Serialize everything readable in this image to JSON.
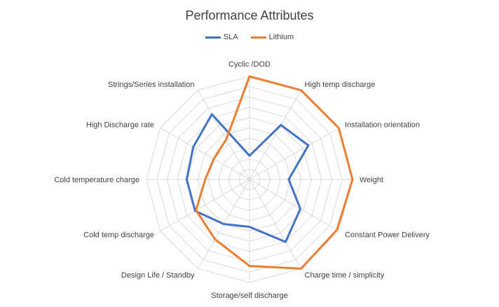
{
  "chart_data": {
    "type": "radar",
    "title": "Performance Attributes",
    "categories": [
      "Cyclic /DOD",
      "High temp discharge",
      "Installation orientation",
      "Weight",
      "Constant Power Delivery",
      "Charge time / simplicity",
      "Storage/self discharge",
      "Design Life / Standby",
      "Cold temp discharge",
      "Cold temperature charge",
      "High Discharge rate",
      "Strings/Series installation"
    ],
    "range": [
      0,
      10
    ],
    "rings": 10,
    "grid": true,
    "legend_position": "top",
    "series": [
      {
        "name": "SLA",
        "color": "#4472C4",
        "values": [
          2.3,
          6.1,
          6.6,
          3.8,
          5.7,
          7.0,
          4.6,
          5.0,
          6.1,
          6.1,
          6.3,
          7.3
        ]
      },
      {
        "name": "Lithium",
        "color": "#ED7D31",
        "values": [
          10,
          10,
          10,
          10,
          9.8,
          10,
          8.4,
          6.7,
          6.0,
          4.3,
          4.0,
          4.5
        ]
      }
    ]
  }
}
